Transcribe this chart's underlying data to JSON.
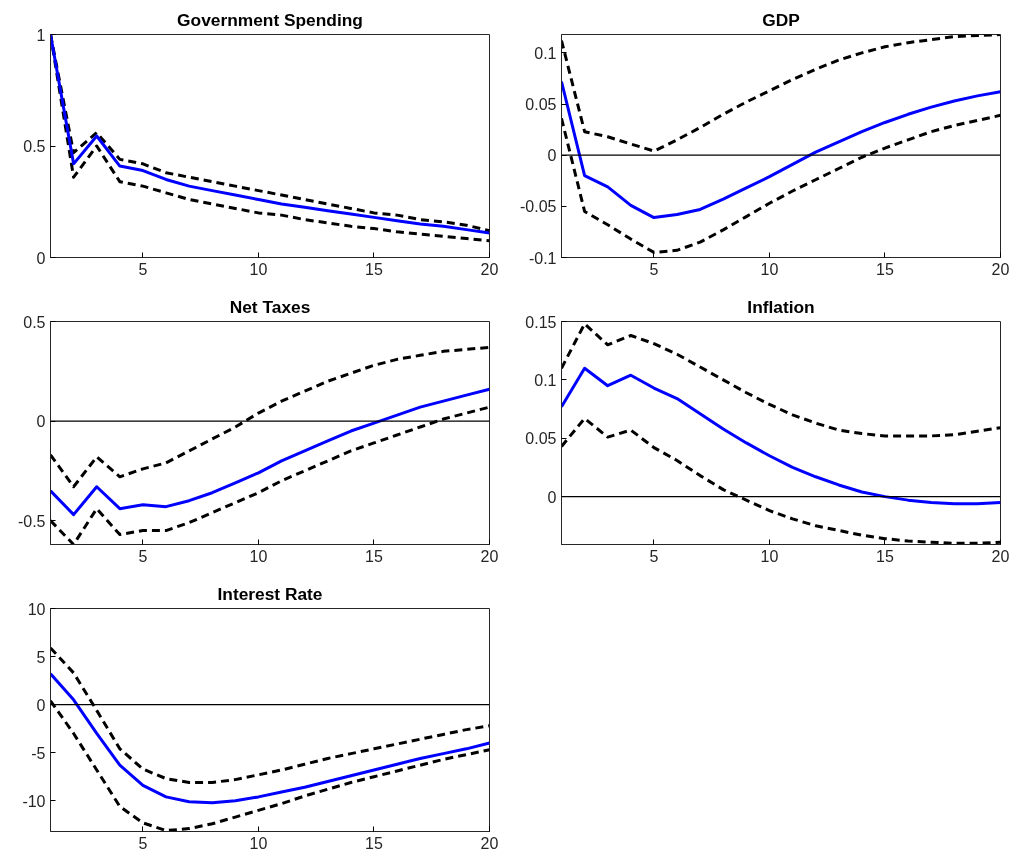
{
  "chart_data": [
    {
      "type": "line",
      "title": "Government Spending",
      "x": [
        1,
        2,
        3,
        4,
        5,
        6,
        7,
        8,
        9,
        10,
        11,
        12,
        13,
        14,
        15,
        16,
        17,
        18,
        19,
        20
      ],
      "xlim": [
        1,
        20
      ],
      "xticks": [
        5,
        10,
        15,
        20
      ],
      "ylim": [
        0,
        1
      ],
      "yticks": [
        0,
        0.5,
        1
      ],
      "grid": false,
      "series": [
        {
          "color": "#000000",
          "line_style": "dashed",
          "values": [
            1.0,
            0.47,
            0.56,
            0.44,
            0.42,
            0.38,
            0.36,
            0.34,
            0.32,
            0.3,
            0.28,
            0.26,
            0.24,
            0.22,
            0.2,
            0.19,
            0.17,
            0.16,
            0.145,
            0.12
          ]
        },
        {
          "color": "#000000",
          "line_style": "dashed",
          "values": [
            1.0,
            0.36,
            0.5,
            0.34,
            0.32,
            0.29,
            0.26,
            0.24,
            0.22,
            0.2,
            0.19,
            0.17,
            0.155,
            0.14,
            0.13,
            0.115,
            0.105,
            0.095,
            0.085,
            0.075
          ]
        },
        {
          "color": "#0000ff",
          "line_style": "solid",
          "values": [
            1.0,
            0.42,
            0.545,
            0.41,
            0.39,
            0.35,
            0.32,
            0.3,
            0.28,
            0.26,
            0.24,
            0.225,
            0.21,
            0.195,
            0.18,
            0.165,
            0.15,
            0.14,
            0.125,
            0.11
          ]
        }
      ]
    },
    {
      "type": "line",
      "title": "GDP",
      "x": [
        1,
        2,
        3,
        4,
        5,
        6,
        7,
        8,
        9,
        10,
        11,
        12,
        13,
        14,
        15,
        16,
        17,
        18,
        19,
        20
      ],
      "xlim": [
        1,
        20
      ],
      "xticks": [
        5,
        10,
        15,
        20
      ],
      "ylim": [
        -0.1,
        0.118
      ],
      "yticks": [
        -0.1,
        -0.05,
        0,
        0.05,
        0.1
      ],
      "grid": false,
      "ref_lines": [
        {
          "axis": "y",
          "value": 0,
          "color": "#000000"
        }
      ],
      "series": [
        {
          "color": "#000000",
          "line_style": "dashed",
          "values": [
            0.112,
            0.023,
            0.018,
            0.011,
            0.004,
            0.015,
            0.027,
            0.04,
            0.052,
            0.063,
            0.074,
            0.084,
            0.093,
            0.1,
            0.106,
            0.11,
            0.113,
            0.116,
            0.117,
            0.118
          ]
        },
        {
          "color": "#000000",
          "line_style": "dashed",
          "values": [
            0.036,
            -0.055,
            -0.068,
            -0.082,
            -0.095,
            -0.093,
            -0.085,
            -0.073,
            -0.06,
            -0.047,
            -0.035,
            -0.024,
            -0.013,
            -0.002,
            0.007,
            0.015,
            0.023,
            0.029,
            0.034,
            0.039
          ]
        },
        {
          "color": "#0000ff",
          "line_style": "solid",
          "values": [
            0.072,
            -0.02,
            -0.031,
            -0.049,
            -0.061,
            -0.058,
            -0.053,
            -0.043,
            -0.032,
            -0.021,
            -0.009,
            0.003,
            0.013,
            0.023,
            0.032,
            0.04,
            0.047,
            0.053,
            0.058,
            0.062
          ]
        }
      ]
    },
    {
      "type": "line",
      "title": "Net Taxes",
      "x": [
        1,
        2,
        3,
        4,
        5,
        6,
        7,
        8,
        9,
        10,
        11,
        12,
        13,
        14,
        15,
        16,
        17,
        18,
        19,
        20
      ],
      "xlim": [
        1,
        20
      ],
      "xticks": [
        5,
        10,
        15,
        20
      ],
      "ylim": [
        -0.62,
        0.5
      ],
      "yticks": [
        -0.5,
        0,
        0.5
      ],
      "grid": false,
      "ref_lines": [
        {
          "axis": "y",
          "value": 0,
          "color": "#000000"
        }
      ],
      "series": [
        {
          "color": "#000000",
          "line_style": "dashed",
          "values": [
            -0.17,
            -0.33,
            -0.18,
            -0.28,
            -0.24,
            -0.21,
            -0.15,
            -0.09,
            -0.03,
            0.04,
            0.1,
            0.15,
            0.2,
            0.24,
            0.28,
            0.31,
            0.33,
            0.35,
            0.36,
            0.37
          ]
        },
        {
          "color": "#000000",
          "line_style": "dashed",
          "values": [
            -0.5,
            -0.62,
            -0.44,
            -0.57,
            -0.55,
            -0.55,
            -0.51,
            -0.46,
            -0.41,
            -0.36,
            -0.3,
            -0.25,
            -0.2,
            -0.15,
            -0.11,
            -0.07,
            -0.03,
            0.01,
            0.04,
            0.07
          ]
        },
        {
          "color": "#0000ff",
          "line_style": "solid",
          "values": [
            -0.35,
            -0.47,
            -0.33,
            -0.44,
            -0.42,
            -0.43,
            -0.4,
            -0.36,
            -0.31,
            -0.26,
            -0.2,
            -0.15,
            -0.1,
            -0.05,
            -0.01,
            0.03,
            0.07,
            0.1,
            0.13,
            0.16
          ]
        }
      ]
    },
    {
      "type": "line",
      "title": "Inflation",
      "x": [
        1,
        2,
        3,
        4,
        5,
        6,
        7,
        8,
        9,
        10,
        11,
        12,
        13,
        14,
        15,
        16,
        17,
        18,
        19,
        20
      ],
      "xlim": [
        1,
        20
      ],
      "xticks": [
        5,
        10,
        15,
        20
      ],
      "ylim": [
        -0.041,
        0.15
      ],
      "yticks": [
        0,
        0.05,
        0.1,
        0.15
      ],
      "grid": false,
      "ref_lines": [
        {
          "axis": "y",
          "value": 0,
          "color": "#000000"
        }
      ],
      "series": [
        {
          "color": "#000000",
          "line_style": "dashed",
          "values": [
            0.11,
            0.148,
            0.13,
            0.138,
            0.131,
            0.122,
            0.111,
            0.1,
            0.089,
            0.079,
            0.07,
            0.063,
            0.057,
            0.054,
            0.052,
            0.052,
            0.052,
            0.053,
            0.056,
            0.059
          ]
        },
        {
          "color": "#000000",
          "line_style": "dashed",
          "values": [
            0.043,
            0.067,
            0.051,
            0.057,
            0.042,
            0.031,
            0.018,
            0.006,
            -0.003,
            -0.012,
            -0.019,
            -0.025,
            -0.029,
            -0.033,
            -0.036,
            -0.038,
            -0.039,
            -0.04,
            -0.04,
            -0.039
          ]
        },
        {
          "color": "#0000ff",
          "line_style": "solid",
          "values": [
            0.077,
            0.11,
            0.095,
            0.104,
            0.093,
            0.084,
            0.071,
            0.058,
            0.046,
            0.035,
            0.025,
            0.017,
            0.01,
            0.004,
            0.0,
            -0.003,
            -0.005,
            -0.006,
            -0.006,
            -0.005
          ]
        }
      ]
    },
    {
      "type": "line",
      "title": "Interest Rate",
      "x": [
        1,
        2,
        3,
        4,
        5,
        6,
        7,
        8,
        9,
        10,
        11,
        12,
        13,
        14,
        15,
        16,
        17,
        18,
        19,
        20
      ],
      "xlim": [
        1,
        20
      ],
      "xticks": [
        5,
        10,
        15,
        20
      ],
      "ylim": [
        -13.2,
        10
      ],
      "yticks": [
        -10,
        -5,
        0,
        5,
        10
      ],
      "grid": false,
      "ref_lines": [
        {
          "axis": "y",
          "value": 0,
          "color": "#000000"
        }
      ],
      "series": [
        {
          "color": "#000000",
          "line_style": "dashed",
          "values": [
            5.9,
            3.3,
            -0.6,
            -4.6,
            -6.7,
            -7.7,
            -8.1,
            -8.1,
            -7.8,
            -7.3,
            -6.8,
            -6.2,
            -5.6,
            -5.1,
            -4.6,
            -4.1,
            -3.6,
            -3.1,
            -2.6,
            -2.2
          ]
        },
        {
          "color": "#000000",
          "line_style": "dashed",
          "values": [
            0.4,
            -3.0,
            -6.8,
            -10.6,
            -12.3,
            -13.1,
            -12.9,
            -12.4,
            -11.7,
            -11.0,
            -10.3,
            -9.5,
            -8.8,
            -8.1,
            -7.5,
            -6.9,
            -6.3,
            -5.7,
            -5.2,
            -4.7
          ]
        },
        {
          "color": "#0000ff",
          "line_style": "solid",
          "values": [
            3.2,
            0.5,
            -3.0,
            -6.3,
            -8.4,
            -9.6,
            -10.1,
            -10.2,
            -10.0,
            -9.6,
            -9.1,
            -8.6,
            -8.0,
            -7.4,
            -6.8,
            -6.2,
            -5.6,
            -5.1,
            -4.6,
            -4.0
          ]
        }
      ]
    }
  ]
}
